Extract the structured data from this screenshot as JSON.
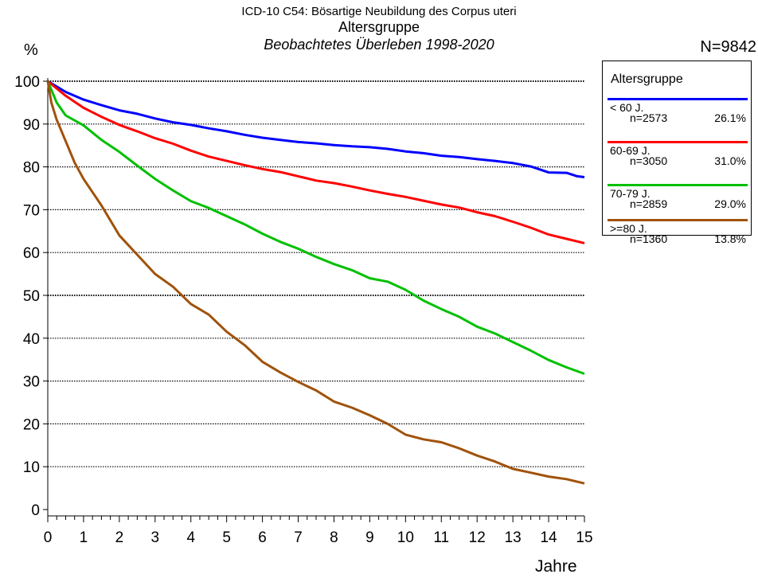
{
  "header": {
    "title": "ICD-10 C54: Bösartige Neubildung des Corpus uteri",
    "subtitle": "Altersgruppe",
    "caption": "Beobachtetes Überleben 1998-2020",
    "n_total": "N=9842"
  },
  "legend": {
    "title": "Altersgruppe",
    "entries": [
      {
        "name": "< 60 J.",
        "n": "n=2573",
        "pct": "26.1%",
        "color": "#0000ff"
      },
      {
        "name": "60-69 J.",
        "n": "n=3050",
        "pct": "31.0%",
        "color": "#ff0000"
      },
      {
        "name": "70-79 J.",
        "n": "n=2859",
        "pct": "29.0%",
        "color": "#00c000"
      },
      {
        "name": ">=80 J.",
        "n": "n=1360",
        "pct": "13.8%",
        "color": "#a0520a"
      }
    ]
  },
  "chart_data": {
    "type": "line",
    "title": "ICD-10 C54: Bösartige Neubildung des Corpus uteri",
    "subtitle": "Altersgruppe",
    "xlabel": "Jahre",
    "ylabel": "%",
    "xlim": [
      0,
      15
    ],
    "ylim": [
      0,
      100
    ],
    "x_ticks": [
      0,
      1,
      2,
      3,
      4,
      5,
      6,
      7,
      8,
      9,
      10,
      11,
      12,
      13,
      14,
      15
    ],
    "y_ticks": [
      0,
      10,
      20,
      30,
      40,
      50,
      60,
      70,
      80,
      90,
      100
    ],
    "grid": "horizontal dotted",
    "legend_position": "right",
    "series": [
      {
        "name": "< 60 J.",
        "color": "#0000ff",
        "x": [
          0,
          0.5,
          1,
          1.5,
          2,
          2.5,
          3,
          3.5,
          4,
          4.5,
          5,
          5.5,
          6,
          6.5,
          7,
          7.5,
          8,
          8.5,
          9,
          9.5,
          10,
          10.5,
          11,
          11.5,
          12,
          12.5,
          13,
          13.5,
          14,
          14.5,
          14.8,
          15
        ],
        "y": [
          100,
          97.5,
          95.7,
          94.4,
          93.2,
          92.4,
          91.3,
          90.4,
          89.8,
          89,
          88.3,
          87.5,
          86.8,
          86.3,
          85.8,
          85.5,
          85.1,
          84.8,
          84.6,
          84.2,
          83.6,
          83.2,
          82.6,
          82.3,
          81.8,
          81.4,
          80.9,
          80.1,
          78.7,
          78.6,
          77.8,
          77.6
        ]
      },
      {
        "name": "60-69 J.",
        "color": "#ff0000",
        "x": [
          0,
          0.5,
          1,
          1.5,
          2,
          2.5,
          3,
          3.5,
          4,
          4.5,
          5,
          5.5,
          6,
          6.5,
          7,
          7.5,
          8,
          8.5,
          9,
          9.5,
          10,
          10.5,
          11,
          11.5,
          12,
          12.5,
          13,
          13.5,
          14,
          14.5,
          15
        ],
        "y": [
          100,
          96.6,
          93.8,
          91.7,
          89.8,
          88.3,
          86.7,
          85.4,
          83.8,
          82.4,
          81.4,
          80.4,
          79.5,
          78.8,
          77.8,
          76.8,
          76.2,
          75.4,
          74.5,
          73.7,
          73,
          72.1,
          71.2,
          70.5,
          69.4,
          68.5,
          67.2,
          65.8,
          64.2,
          63.2,
          62.2
        ]
      },
      {
        "name": "70-79 J.",
        "color": "#00c000",
        "x": [
          0,
          0.25,
          0.5,
          1,
          1.5,
          2,
          2.5,
          3,
          3.5,
          4,
          4.5,
          5,
          5.5,
          6,
          6.5,
          7,
          7.5,
          8,
          8.5,
          9,
          9.5,
          10,
          10.5,
          11,
          11.5,
          12,
          12.5,
          13,
          13.5,
          14,
          14.5,
          15
        ],
        "y": [
          100,
          95,
          92,
          89.7,
          86.3,
          83.5,
          80.3,
          77.2,
          74.5,
          72,
          70.4,
          68.5,
          66.6,
          64.4,
          62.5,
          60.9,
          59,
          57.3,
          55.9,
          54,
          53.2,
          51.3,
          48.8,
          46.8,
          45,
          42.7,
          41.1,
          39.1,
          37.1,
          34.9,
          33.2,
          31.7
        ]
      },
      {
        "name": ">=80 J.",
        "color": "#a0520a",
        "x": [
          0,
          0.1,
          0.25,
          0.5,
          0.75,
          1,
          1.5,
          2,
          2.5,
          3,
          3.5,
          4,
          4.5,
          5,
          5.5,
          6,
          6.5,
          7,
          7.5,
          8,
          8.5,
          9,
          9.5,
          10,
          10.5,
          11,
          11.5,
          12,
          12.5,
          13,
          13.5,
          14,
          14.5,
          15
        ],
        "y": [
          100,
          95,
          91,
          86,
          81,
          77.2,
          71,
          64,
          59.5,
          55,
          52,
          48,
          45.5,
          41.5,
          38.4,
          34.5,
          32,
          29.8,
          27.8,
          25.2,
          23.8,
          22,
          20,
          17.5,
          16.4,
          15.7,
          14.3,
          12.6,
          11.2,
          9.5,
          8.6,
          7.7,
          7.1,
          6.1
        ]
      }
    ]
  }
}
